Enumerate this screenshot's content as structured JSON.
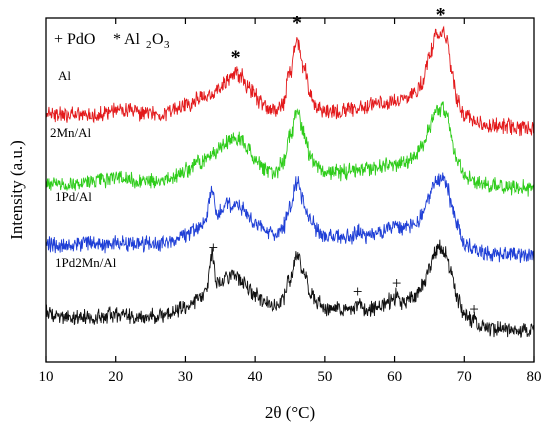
{
  "chart_data": {
    "type": "line",
    "xlabel": "2θ (°C)",
    "ylabel": "Intensity (a.u.)",
    "xlim": [
      10,
      80
    ],
    "x_ticks": [
      "10",
      "20",
      "30",
      "40",
      "50",
      "60",
      "70",
      "80"
    ],
    "y_ticks": "none",
    "grid": false,
    "legend": {
      "pdo_symbol": "+",
      "pdo_label": "PdO",
      "al2o3_symbol": "*",
      "al2o3_label": "Al",
      "al2o3_sub1": "2",
      "al2o3_mid": "O",
      "al2o3_sub2": "3"
    },
    "series": [
      {
        "name": "Al",
        "color": "#e31a1c",
        "x": [
          10,
          12,
          14,
          16,
          18,
          20,
          22,
          24,
          26,
          28,
          30,
          32,
          34,
          35,
          36,
          37,
          38,
          39,
          40,
          41,
          42,
          43,
          44,
          45,
          46,
          47,
          48,
          49,
          50,
          52,
          54,
          56,
          58,
          60,
          62,
          63,
          64,
          65,
          66,
          66.8,
          67.5,
          68,
          69,
          70,
          72,
          74,
          76,
          78,
          80
        ],
        "y": [
          0.85,
          0.73,
          0.71,
          0.73,
          0.76,
          0.88,
          0.84,
          0.76,
          0.75,
          0.84,
          1.04,
          1.24,
          1.42,
          1.58,
          1.82,
          2.06,
          1.96,
          1.66,
          1.32,
          1.08,
          0.92,
          0.84,
          1.12,
          2.06,
          3.14,
          2.2,
          1.34,
          0.98,
          0.84,
          0.85,
          0.93,
          1.02,
          1.1,
          1.18,
          1.3,
          1.45,
          1.82,
          2.6,
          3.3,
          3.42,
          3.1,
          2.36,
          1.22,
          0.74,
          0.46,
          0.38,
          0.36,
          0.32,
          0.3
        ]
      },
      {
        "name": "2Mn/Al",
        "color": "#2ecc1a",
        "x": [
          10,
          12,
          14,
          16,
          18,
          20,
          22,
          24,
          26,
          28,
          30,
          32,
          34,
          35,
          36,
          37,
          38,
          39,
          40,
          41,
          42,
          43,
          44,
          45,
          46,
          47,
          48,
          49,
          50,
          52,
          54,
          56,
          58,
          60,
          62,
          63,
          64,
          65,
          66,
          66.8,
          67.5,
          68,
          69,
          70,
          72,
          74,
          76,
          78,
          80
        ],
        "y": [
          0.55,
          0.5,
          0.5,
          0.55,
          0.6,
          0.72,
          0.65,
          0.58,
          0.6,
          0.72,
          0.92,
          1.2,
          1.45,
          1.66,
          1.86,
          1.97,
          1.88,
          1.62,
          1.3,
          1.06,
          0.92,
          0.86,
          1.2,
          2.0,
          2.78,
          2.08,
          1.36,
          1.02,
          0.86,
          0.87,
          0.93,
          1.0,
          1.08,
          1.15,
          1.25,
          1.42,
          1.78,
          2.35,
          2.82,
          2.92,
          2.7,
          2.12,
          1.16,
          0.76,
          0.54,
          0.48,
          0.44,
          0.4,
          0.38
        ]
      },
      {
        "name": "1Pd/Al",
        "color": "#1f3fd6",
        "x": [
          10,
          12,
          14,
          16,
          18,
          20,
          22,
          24,
          26,
          28,
          30,
          31,
          32,
          33,
          33.8,
          34.5,
          35,
          36,
          37,
          38,
          39,
          40,
          41,
          42,
          43,
          44,
          45,
          46,
          47,
          48,
          49,
          50,
          52,
          54,
          54.8,
          55.6,
          57,
          58,
          60,
          60.3,
          61,
          62,
          63,
          64,
          65,
          66,
          66.8,
          67.5,
          68,
          69,
          70,
          71.4,
          72,
          74,
          76,
          78,
          80
        ],
        "y": [
          0.5,
          0.45,
          0.5,
          0.5,
          0.48,
          0.56,
          0.52,
          0.5,
          0.52,
          0.6,
          0.78,
          0.9,
          1.05,
          1.3,
          2.3,
          1.45,
          1.5,
          1.72,
          1.82,
          1.7,
          1.45,
          1.15,
          0.98,
          0.88,
          0.82,
          1.05,
          1.7,
          2.48,
          1.78,
          1.2,
          0.92,
          0.76,
          0.72,
          0.78,
          0.95,
          0.78,
          0.82,
          0.9,
          1.05,
          1.15,
          1.0,
          1.02,
          1.14,
          1.45,
          2.0,
          2.5,
          2.6,
          2.4,
          1.9,
          1.05,
          0.52,
          0.4,
          0.3,
          0.2,
          0.17,
          0.16,
          0.15
        ]
      },
      {
        "name": "1Pd2Mn/Al",
        "color": "#111111",
        "x": [
          10,
          12,
          14,
          16,
          18,
          20,
          22,
          24,
          26,
          28,
          30,
          31,
          32,
          33,
          33.8,
          34.5,
          35,
          36,
          37,
          38,
          39,
          40,
          41,
          42,
          43,
          44,
          45,
          46,
          47,
          48,
          49,
          50,
          52,
          54,
          54.8,
          55.6,
          57,
          58,
          60,
          60.3,
          61,
          62,
          63,
          64,
          65,
          66,
          66.8,
          67.5,
          68,
          69,
          70,
          71.4,
          72,
          74,
          76,
          78,
          80
        ],
        "y": [
          0.55,
          0.42,
          0.38,
          0.42,
          0.4,
          0.5,
          0.42,
          0.4,
          0.45,
          0.56,
          0.72,
          0.86,
          1.02,
          1.3,
          2.45,
          1.45,
          1.46,
          1.66,
          1.74,
          1.62,
          1.4,
          1.12,
          0.94,
          0.84,
          0.78,
          1.0,
          1.62,
          2.38,
          1.72,
          1.16,
          0.86,
          0.7,
          0.62,
          0.66,
          0.86,
          0.66,
          0.7,
          0.8,
          0.98,
          1.12,
          0.9,
          0.94,
          1.06,
          1.4,
          2.0,
          2.52,
          2.62,
          2.4,
          1.88,
          1.0,
          0.45,
          0.3,
          0.18,
          0.06,
          0.0,
          -0.02,
          -0.04
        ]
      }
    ],
    "annotations": [
      {
        "symbol": "*",
        "x": 37.2,
        "series": "Al"
      },
      {
        "symbol": "*",
        "x": 46.0,
        "series": "Al"
      },
      {
        "symbol": "*",
        "x": 66.6,
        "series": "Al"
      },
      {
        "symbol": "+",
        "x": 34.0,
        "series": "1Pd2Mn/Al"
      },
      {
        "symbol": "+",
        "x": 54.7,
        "series": "1Pd2Mn/Al"
      },
      {
        "symbol": "+",
        "x": 60.3,
        "series": "1Pd2Mn/Al"
      },
      {
        "symbol": "+",
        "x": 71.4,
        "series": "1Pd2Mn/Al"
      }
    ]
  }
}
